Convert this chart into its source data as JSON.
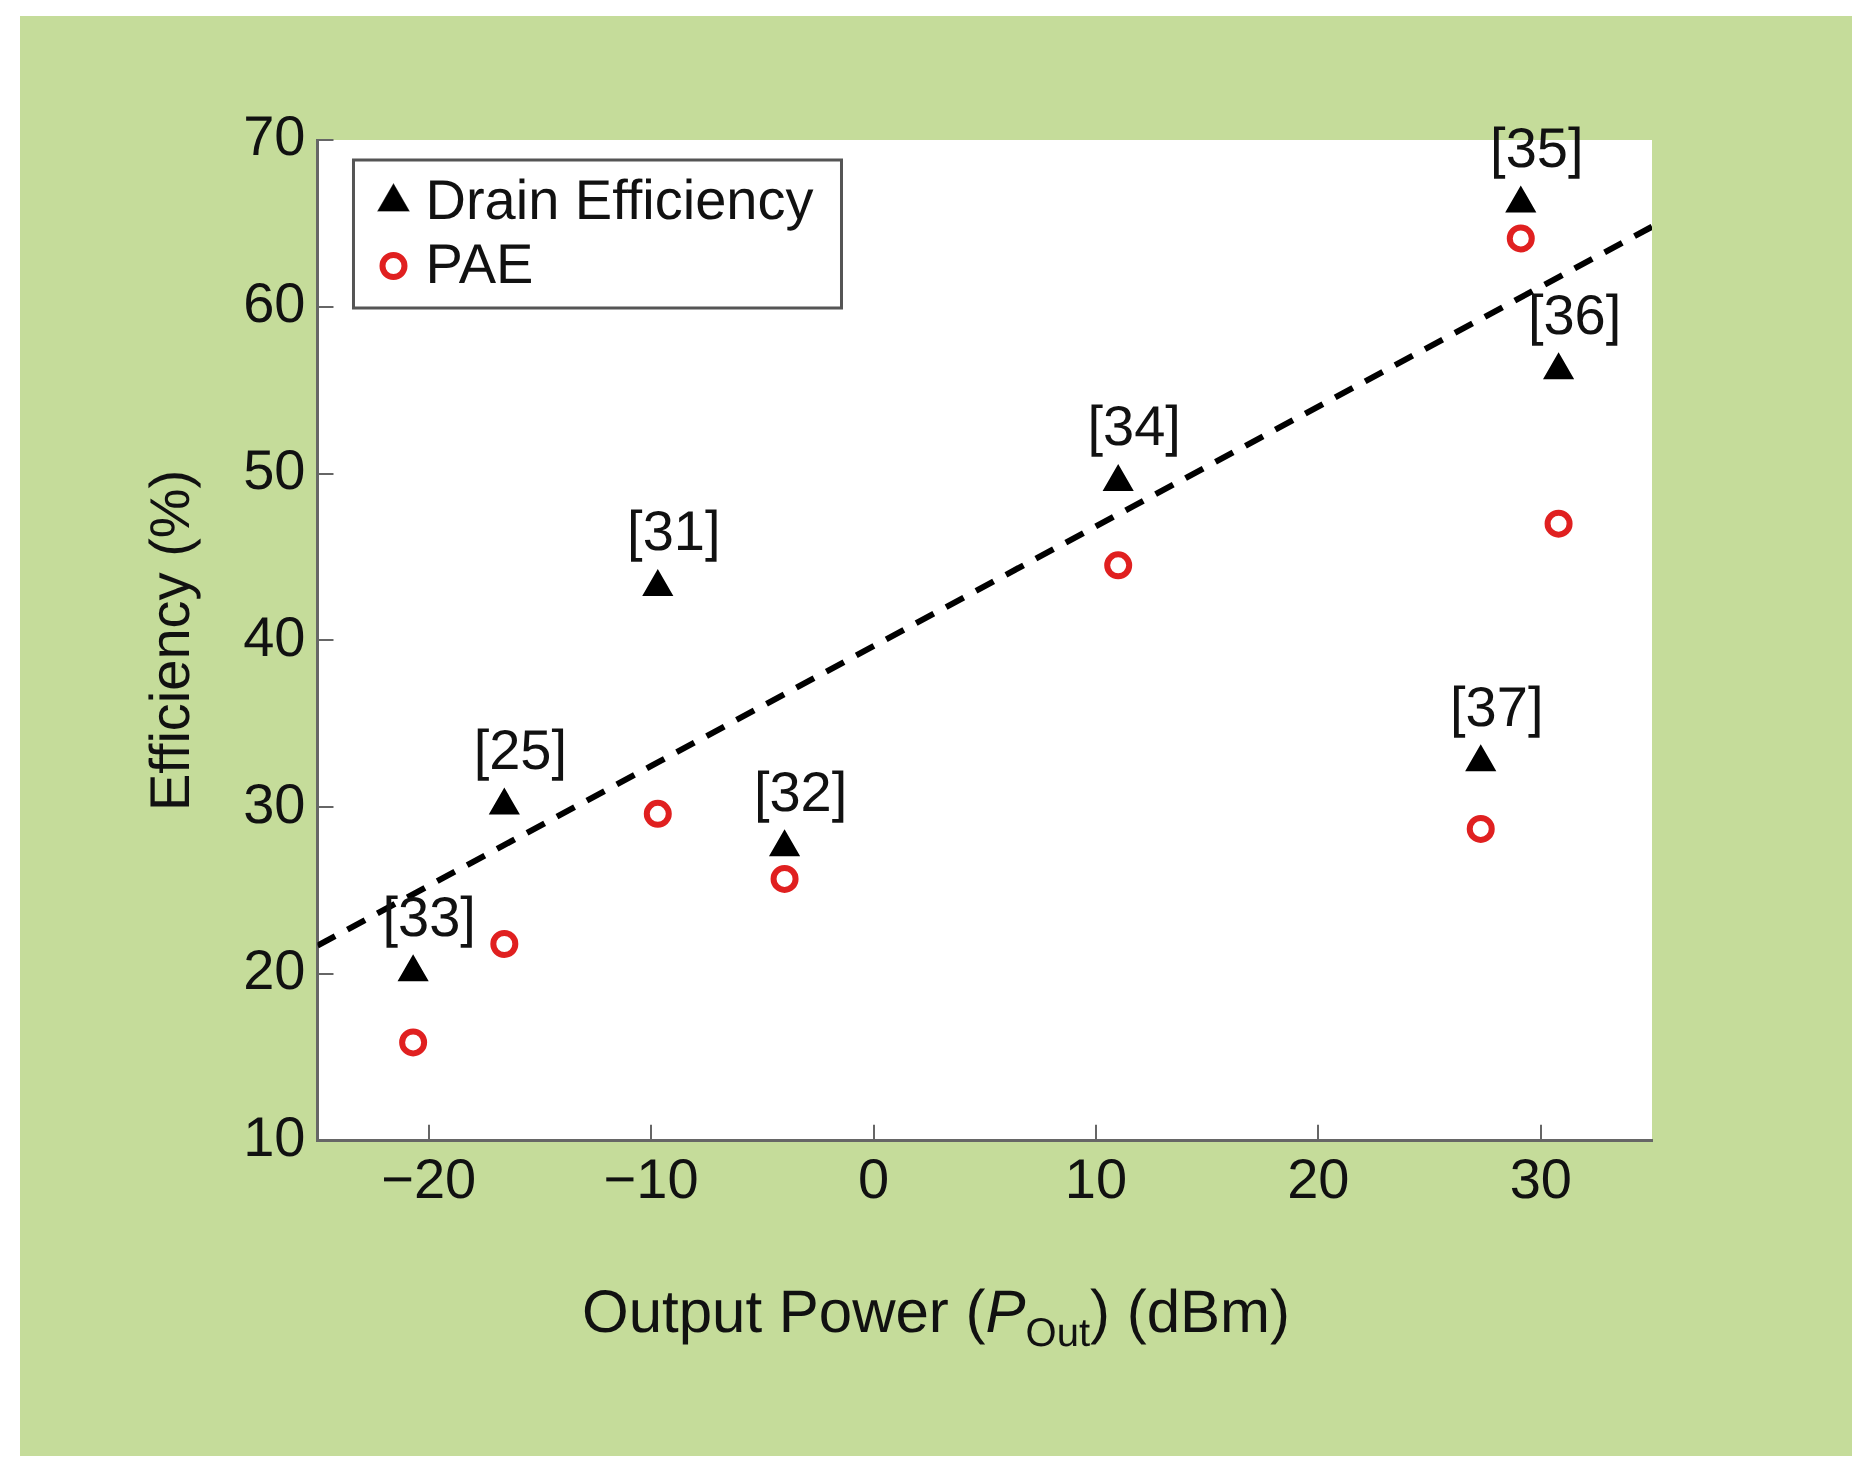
{
  "chart_data": {
    "type": "scatter",
    "xlabel": "Output Power (P$_{Out}$) (dBm)",
    "ylabel": "Efficiency (%)",
    "xlim": [
      -25,
      35
    ],
    "xticks": [
      {
        "value": -20,
        "label": "−20"
      },
      {
        "value": -10,
        "label": "−10"
      },
      0,
      10,
      20,
      30
    ],
    "ylim": [
      10,
      70
    ],
    "yticks": [
      10,
      20,
      30,
      40,
      50,
      60,
      70
    ],
    "grid": false,
    "legend": "top left",
    "series": [
      {
        "name": "Drain Efficiency",
        "color": "#000000",
        "marker": "triangle",
        "x": [
          -20.7,
          -16.6,
          -9.7,
          -4.0,
          11.0,
          29.1,
          30.8,
          27.3
        ],
        "values": [
          20.1,
          30.1,
          43.2,
          27.6,
          49.5,
          66.2,
          56.2,
          32.7
        ]
      },
      {
        "name": "PAE",
        "color": "#e02020",
        "marker": "circle",
        "x": [
          -20.7,
          -16.6,
          -9.7,
          -4.0,
          11.0,
          29.1,
          30.8,
          27.3
        ],
        "values": [
          15.9,
          21.8,
          29.6,
          25.7,
          44.5,
          64.1,
          47.0,
          28.7
        ]
      },
      {
        "type": "line",
        "color": "#000000",
        "line_style": "dashed",
        "marker": "none",
        "x": [
          -25,
          35
        ],
        "values": [
          21.7,
          64.8
        ]
      }
    ],
    "annotations": [
      {
        "text": "[33]",
        "x": -20.7,
        "y": 20.1
      },
      {
        "text": "[25]",
        "x": -16.6,
        "y": 30.1
      },
      {
        "text": "[31]",
        "x": -9.7,
        "y": 43.2
      },
      {
        "text": "[32]",
        "x": -4.0,
        "y": 27.6
      },
      {
        "text": "[34]",
        "x": 11.0,
        "y": 49.5
      },
      {
        "text": "[35]",
        "x": 29.1,
        "y": 66.2
      },
      {
        "text": "[36]",
        "x": 30.8,
        "y": 56.2
      },
      {
        "text": "[37]",
        "x": 27.3,
        "y": 32.7
      }
    ]
  }
}
